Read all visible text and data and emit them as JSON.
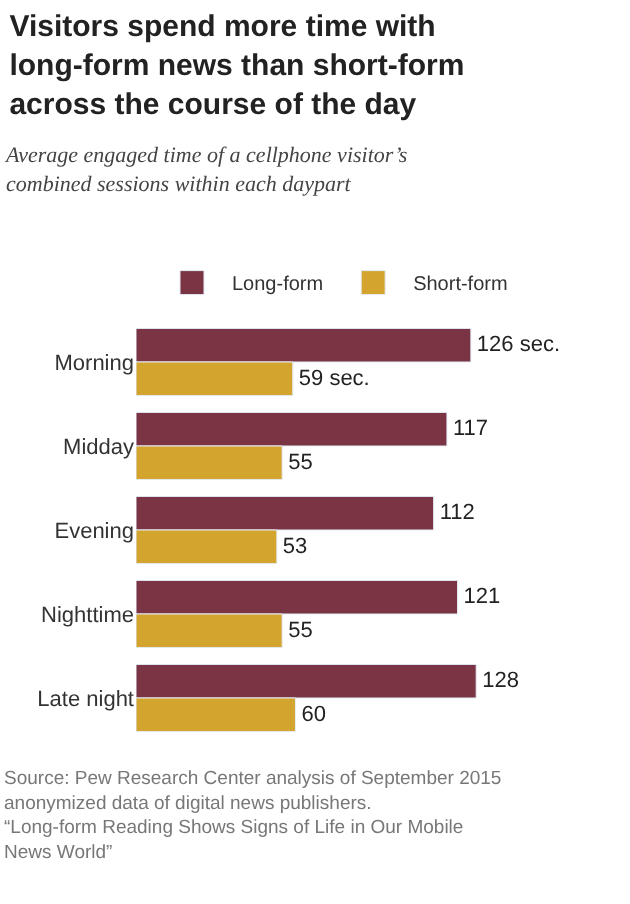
{
  "chart_data": {
    "type": "bar",
    "orientation": "horizontal",
    "title": "Visitors spend more time with long-form news than short-form across the course of the day",
    "subtitle": "Average engaged time of a cellphone visitor’s combined sessions within each daypart",
    "categories": [
      "Morning",
      "Midday",
      "Evening",
      "Nighttime",
      "Late night"
    ],
    "series": [
      {
        "name": "Long-form",
        "color": "#7b3444",
        "values": [
          126,
          117,
          112,
          121,
          128
        ],
        "value_labels": [
          "126 sec.",
          "117",
          "112",
          "121",
          "128"
        ]
      },
      {
        "name": "Short-form",
        "color": "#d3a52f",
        "values": [
          59,
          55,
          53,
          55,
          60
        ],
        "value_labels": [
          "59 sec.",
          "55",
          "53",
          "55",
          "60"
        ]
      }
    ],
    "legend": "top",
    "annotations": [
      "Source: Pew Research Center analysis of September 2015 anonymized data of digital news publishers.",
      "“Long-form Reading Shows Signs of Life in Our Mobile News World”"
    ]
  }
}
